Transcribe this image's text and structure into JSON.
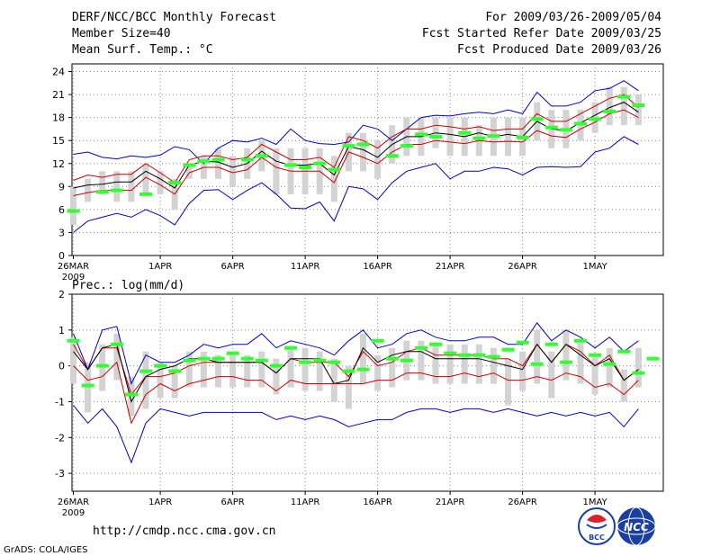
{
  "header": {
    "left": [
      "DERF/NCC/BCC Monthly Forecast",
      "Member Size=40",
      "Mean Surf. Temp.: °C"
    ],
    "right": [
      "For 2009/03/26-2009/05/04",
      "Fcst Started Refer Date 2009/03/25",
      "Fcst Produced Date 2009/03/26"
    ]
  },
  "footer": {
    "url": "http://cmdp.ncc.cma.gov.cn",
    "credit": "GrADS: COLA/IGES",
    "logo_left": "BCC",
    "logo_right": "NCC"
  },
  "colors": {
    "min_max": "#0000cc",
    "spread": "#cc0000",
    "mean": "#000000",
    "obs": "#33ff33",
    "box": "#d3d3d3",
    "grid": "#888888"
  },
  "chart_data": [
    {
      "type": "line",
      "title": "Mean Surf. Temp.: °C",
      "ylim": [
        0,
        25
      ],
      "yticks": [
        0,
        3,
        6,
        9,
        12,
        15,
        18,
        21,
        24
      ],
      "x_tick_labels": [
        {
          "day": 0,
          "label": "26MAR",
          "sub": "2009"
        },
        {
          "day": 6,
          "label": "1APR"
        },
        {
          "day": 11,
          "label": "6APR"
        },
        {
          "day": 16,
          "label": "11APR"
        },
        {
          "day": 21,
          "label": "16APR"
        },
        {
          "day": 26,
          "label": "21APR"
        },
        {
          "day": 31,
          "label": "26APR"
        },
        {
          "day": 36,
          "label": "1MAY"
        }
      ],
      "series": [
        {
          "name": "ensemble max",
          "values": [
            13.2,
            13.5,
            12.8,
            12.6,
            13.0,
            12.8,
            13.1,
            14.2,
            13.8,
            12.0,
            14.0,
            15.0,
            14.8,
            15.3,
            14.5,
            16.5,
            15.0,
            14.6,
            14.5,
            14.8,
            17.0,
            16.5,
            15.0,
            16.5,
            18.0,
            18.3,
            18.2,
            18.5,
            18.7,
            18.5,
            19.0,
            18.5,
            21.3,
            19.5,
            19.5,
            20.0,
            21.5,
            21.8,
            22.8,
            21.5
          ]
        },
        {
          "name": "upper spread",
          "values": [
            9.8,
            10.5,
            10.2,
            10.6,
            10.6,
            12.0,
            10.8,
            9.5,
            12.5,
            13.0,
            13.0,
            12.5,
            12.8,
            14.5,
            13.5,
            12.5,
            12.5,
            12.8,
            11.5,
            15.5,
            15.0,
            14.0,
            15.5,
            16.5,
            16.5,
            17.0,
            16.8,
            16.5,
            16.8,
            16.3,
            16.5,
            16.5,
            18.5,
            17.5,
            17.5,
            18.5,
            19.5,
            20.5,
            21.0,
            19.3
          ]
        },
        {
          "name": "ensemble mean",
          "values": [
            8.8,
            9.2,
            9.3,
            9.6,
            9.6,
            11.0,
            10.0,
            8.8,
            11.8,
            12.3,
            12.2,
            11.5,
            12.0,
            13.6,
            12.3,
            11.8,
            11.8,
            12.0,
            10.5,
            14.2,
            13.8,
            12.8,
            14.5,
            15.5,
            15.5,
            16.0,
            15.8,
            15.5,
            16.0,
            15.5,
            15.8,
            15.5,
            17.5,
            16.5,
            16.3,
            17.3,
            18.3,
            19.3,
            20.0,
            18.7
          ]
        },
        {
          "name": "lower spread",
          "values": [
            7.8,
            8.2,
            8.5,
            8.5,
            8.5,
            10.2,
            9.2,
            8.0,
            10.8,
            11.5,
            11.5,
            10.8,
            11.2,
            12.8,
            11.5,
            11.0,
            11.0,
            11.0,
            9.5,
            13.5,
            12.8,
            12.0,
            13.5,
            14.5,
            14.5,
            15.0,
            14.8,
            14.6,
            15.0,
            14.8,
            14.9,
            14.8,
            16.3,
            15.6,
            15.4,
            16.5,
            17.4,
            18.5,
            19.0,
            18.0
          ]
        },
        {
          "name": "ensemble min",
          "values": [
            3.0,
            4.5,
            5.0,
            5.5,
            5.0,
            6.0,
            5.2,
            4.0,
            6.8,
            8.5,
            8.6,
            7.3,
            8.5,
            9.5,
            8.0,
            6.2,
            6.1,
            7.0,
            4.5,
            9.0,
            8.7,
            7.3,
            9.5,
            11.0,
            11.5,
            12.0,
            10.0,
            11.0,
            11.0,
            11.5,
            11.3,
            10.5,
            11.5,
            11.6,
            11.5,
            11.6,
            13.5,
            14.0,
            15.5,
            14.5
          ]
        }
      ],
      "boxes": [
        [
          4,
          9
        ],
        [
          7,
          10
        ],
        [
          8,
          11
        ],
        [
          7,
          11
        ],
        [
          7,
          11
        ],
        [
          8,
          12
        ],
        [
          8,
          11
        ],
        [
          6,
          10
        ],
        [
          10,
          12
        ],
        [
          10,
          13
        ],
        [
          10,
          14
        ],
        [
          9,
          13
        ],
        [
          10,
          14
        ],
        [
          11,
          15
        ],
        [
          8,
          14
        ],
        [
          8,
          14
        ],
        [
          8,
          14
        ],
        [
          8,
          14
        ],
        [
          7,
          13
        ],
        [
          11,
          16
        ],
        [
          11,
          16
        ],
        [
          10,
          15
        ],
        [
          12,
          17
        ],
        [
          13,
          18
        ],
        [
          13,
          18
        ],
        [
          14,
          18
        ],
        [
          13,
          18
        ],
        [
          13,
          18
        ],
        [
          13,
          17
        ],
        [
          13,
          18
        ],
        [
          13,
          18
        ],
        [
          13,
          18
        ],
        [
          15,
          20
        ],
        [
          14,
          19
        ],
        [
          14,
          19
        ],
        [
          15,
          19
        ],
        [
          16,
          20
        ],
        [
          17,
          22
        ],
        [
          17,
          22
        ],
        [
          17,
          21
        ]
      ],
      "observed": [
        [
          0,
          5.8
        ],
        [
          2,
          8.3
        ],
        [
          3,
          8.5
        ],
        [
          5,
          8.0
        ],
        [
          7,
          9.5
        ],
        [
          8,
          11.8
        ],
        [
          9,
          12.3
        ],
        [
          10,
          12.5
        ],
        [
          12,
          12.5
        ],
        [
          13,
          13.0
        ],
        [
          15,
          11.8
        ],
        [
          16,
          11.5
        ],
        [
          17,
          12.0
        ],
        [
          18,
          11.2
        ],
        [
          19,
          14.3
        ],
        [
          20,
          14.5
        ],
        [
          22,
          13.0
        ],
        [
          23,
          14.3
        ],
        [
          24,
          15.8
        ],
        [
          25,
          15.5
        ],
        [
          27,
          16.0
        ],
        [
          28,
          15.3
        ],
        [
          29,
          15.6
        ],
        [
          31,
          15.4
        ],
        [
          32,
          17.8
        ],
        [
          33,
          16.7
        ],
        [
          34,
          16.4
        ],
        [
          35,
          17.2
        ],
        [
          36,
          17.8
        ],
        [
          37,
          18.8
        ],
        [
          38,
          20.7
        ],
        [
          39,
          19.6
        ]
      ]
    },
    {
      "type": "line",
      "title": "Prec.: log(mm/d)",
      "ylim": [
        -3.5,
        2
      ],
      "yticks": [
        -3,
        -2,
        -1,
        0,
        1,
        2
      ],
      "x_tick_labels": [
        {
          "day": 0,
          "label": "26MAR",
          "sub": "2009"
        },
        {
          "day": 6,
          "label": "1APR"
        },
        {
          "day": 11,
          "label": "6APR"
        },
        {
          "day": 16,
          "label": "11APR"
        },
        {
          "day": 21,
          "label": "16APR"
        },
        {
          "day": 26,
          "label": "21APR"
        },
        {
          "day": 31,
          "label": "26APR"
        },
        {
          "day": 36,
          "label": "1MAY"
        }
      ],
      "series": [
        {
          "name": "ensemble max",
          "values": [
            0.9,
            -0.1,
            1.0,
            1.1,
            -0.5,
            0.3,
            0.1,
            0.1,
            0.3,
            0.6,
            0.5,
            0.6,
            0.6,
            0.9,
            0.5,
            0.7,
            0.6,
            0.5,
            0.3,
            0.7,
            1.0,
            0.5,
            0.6,
            0.9,
            1.0,
            0.8,
            0.7,
            0.7,
            0.8,
            0.8,
            0.6,
            0.6,
            1.2,
            0.7,
            1.0,
            0.8,
            0.5,
            0.8,
            0.4,
            0.7
          ]
        },
        {
          "name": "upper spread",
          "values": [
            0.6,
            -0.1,
            0.5,
            0.5,
            -0.8,
            -0.3,
            -0.3,
            -0.2,
            0.0,
            0.1,
            0.1,
            0.1,
            0.1,
            0.1,
            -0.2,
            0.2,
            0.1,
            0.1,
            0.1,
            -0.3,
            0.4,
            0.0,
            0.1,
            0.4,
            0.5,
            0.3,
            0.3,
            0.3,
            0.3,
            0.2,
            0.2,
            0.0,
            0.6,
            0.1,
            0.6,
            0.4,
            0.0,
            0.3,
            -0.4,
            -0.1
          ]
        },
        {
          "name": "ensemble mean",
          "values": [
            0.4,
            -0.1,
            0.5,
            0.6,
            -1.0,
            -0.3,
            -0.1,
            0.0,
            0.2,
            0.2,
            0.1,
            0.1,
            0.1,
            0.1,
            -0.2,
            0.2,
            0.2,
            0.2,
            -0.5,
            -0.4,
            0.5,
            0.1,
            0.3,
            0.4,
            0.4,
            0.2,
            0.2,
            0.2,
            0.2,
            0.1,
            0.0,
            -0.1,
            0.6,
            0.1,
            0.6,
            0.3,
            0.0,
            0.2,
            -0.4,
            -0.1
          ]
        },
        {
          "name": "lower spread",
          "values": [
            0.0,
            -0.4,
            -0.3,
            0.1,
            -1.6,
            -0.8,
            -0.5,
            -0.7,
            -0.5,
            -0.4,
            -0.3,
            -0.3,
            -0.4,
            -0.4,
            -0.7,
            -0.4,
            -0.5,
            -0.5,
            -0.5,
            -0.5,
            -0.5,
            -0.4,
            -0.4,
            -0.2,
            -0.2,
            -0.3,
            -0.3,
            -0.2,
            -0.3,
            -0.2,
            -0.4,
            -0.4,
            -0.3,
            -0.4,
            -0.2,
            -0.3,
            -0.6,
            -0.5,
            -0.8,
            -0.4
          ]
        },
        {
          "name": "ensemble min",
          "values": [
            -1.1,
            -1.6,
            -1.2,
            -1.7,
            -2.7,
            -1.6,
            -1.2,
            -1.3,
            -1.4,
            -1.3,
            -1.3,
            -1.3,
            -1.3,
            -1.3,
            -1.5,
            -1.4,
            -1.5,
            -1.4,
            -1.5,
            -1.7,
            -1.6,
            -1.5,
            -1.5,
            -1.3,
            -1.2,
            -1.2,
            -1.3,
            -1.2,
            -1.2,
            -1.3,
            -1.2,
            -1.3,
            -1.4,
            -1.3,
            -1.4,
            -1.3,
            -1.4,
            -1.3,
            -1.7,
            -1.2
          ]
        }
      ],
      "boxes": [
        [
          -0.5,
          0.8
        ],
        [
          -1.3,
          0.1
        ],
        [
          -0.7,
          0.6
        ],
        [
          -0.4,
          0.9
        ],
        [
          -1.4,
          -0.3
        ],
        [
          -1.2,
          0.4
        ],
        [
          -0.9,
          0.1
        ],
        [
          -0.9,
          0.0
        ],
        [
          -0.6,
          0.4
        ],
        [
          -0.6,
          0.4
        ],
        [
          -0.6,
          0.3
        ],
        [
          -0.6,
          0.4
        ],
        [
          -0.6,
          0.3
        ],
        [
          -0.6,
          0.4
        ],
        [
          -0.8,
          0.2
        ],
        [
          -0.6,
          0.5
        ],
        [
          -0.7,
          0.5
        ],
        [
          -0.7,
          0.4
        ],
        [
          -1.0,
          0.2
        ],
        [
          -1.2,
          0.0
        ],
        [
          -0.5,
          0.9
        ],
        [
          -0.7,
          0.3
        ],
        [
          -0.6,
          0.5
        ],
        [
          -0.4,
          0.7
        ],
        [
          -0.4,
          0.7
        ],
        [
          -0.5,
          0.6
        ],
        [
          -0.5,
          0.6
        ],
        [
          -0.5,
          0.6
        ],
        [
          -0.5,
          0.6
        ],
        [
          -0.5,
          0.5
        ],
        [
          -1.1,
          0.2
        ],
        [
          -0.7,
          0.4
        ],
        [
          -0.5,
          1.0
        ],
        [
          -0.9,
          0.4
        ],
        [
          -0.4,
          1.0
        ],
        [
          -0.5,
          0.7
        ],
        [
          -0.8,
          0.3
        ],
        [
          -0.6,
          0.5
        ],
        [
          -1.0,
          -0.1
        ],
        [
          -0.6,
          0.5
        ]
      ],
      "observed": [
        [
          0,
          0.7
        ],
        [
          1,
          -0.55
        ],
        [
          2,
          0.0
        ],
        [
          3,
          0.6
        ],
        [
          4,
          -0.8
        ],
        [
          5,
          -0.15
        ],
        [
          6,
          0.0
        ],
        [
          7,
          -0.15
        ],
        [
          8,
          0.15
        ],
        [
          9,
          0.2
        ],
        [
          10,
          0.2
        ],
        [
          11,
          0.35
        ],
        [
          12,
          0.2
        ],
        [
          13,
          0.15
        ],
        [
          14,
          0.0
        ],
        [
          15,
          0.5
        ],
        [
          16,
          0.1
        ],
        [
          17,
          0.15
        ],
        [
          18,
          0.1
        ],
        [
          19,
          -0.15
        ],
        [
          20,
          -0.1
        ],
        [
          21,
          0.7
        ],
        [
          22,
          0.2
        ],
        [
          23,
          0.15
        ],
        [
          24,
          0.5
        ],
        [
          25,
          0.6
        ],
        [
          26,
          0.35
        ],
        [
          27,
          0.3
        ],
        [
          28,
          0.3
        ],
        [
          29,
          0.25
        ],
        [
          30,
          0.45
        ],
        [
          31,
          0.65
        ],
        [
          32,
          0.05
        ],
        [
          33,
          0.6
        ],
        [
          34,
          0.1
        ],
        [
          35,
          0.7
        ],
        [
          36,
          0.3
        ],
        [
          37,
          0.05
        ],
        [
          38,
          0.4
        ],
        [
          39,
          -0.2
        ],
        [
          40,
          0.2
        ]
      ]
    }
  ]
}
